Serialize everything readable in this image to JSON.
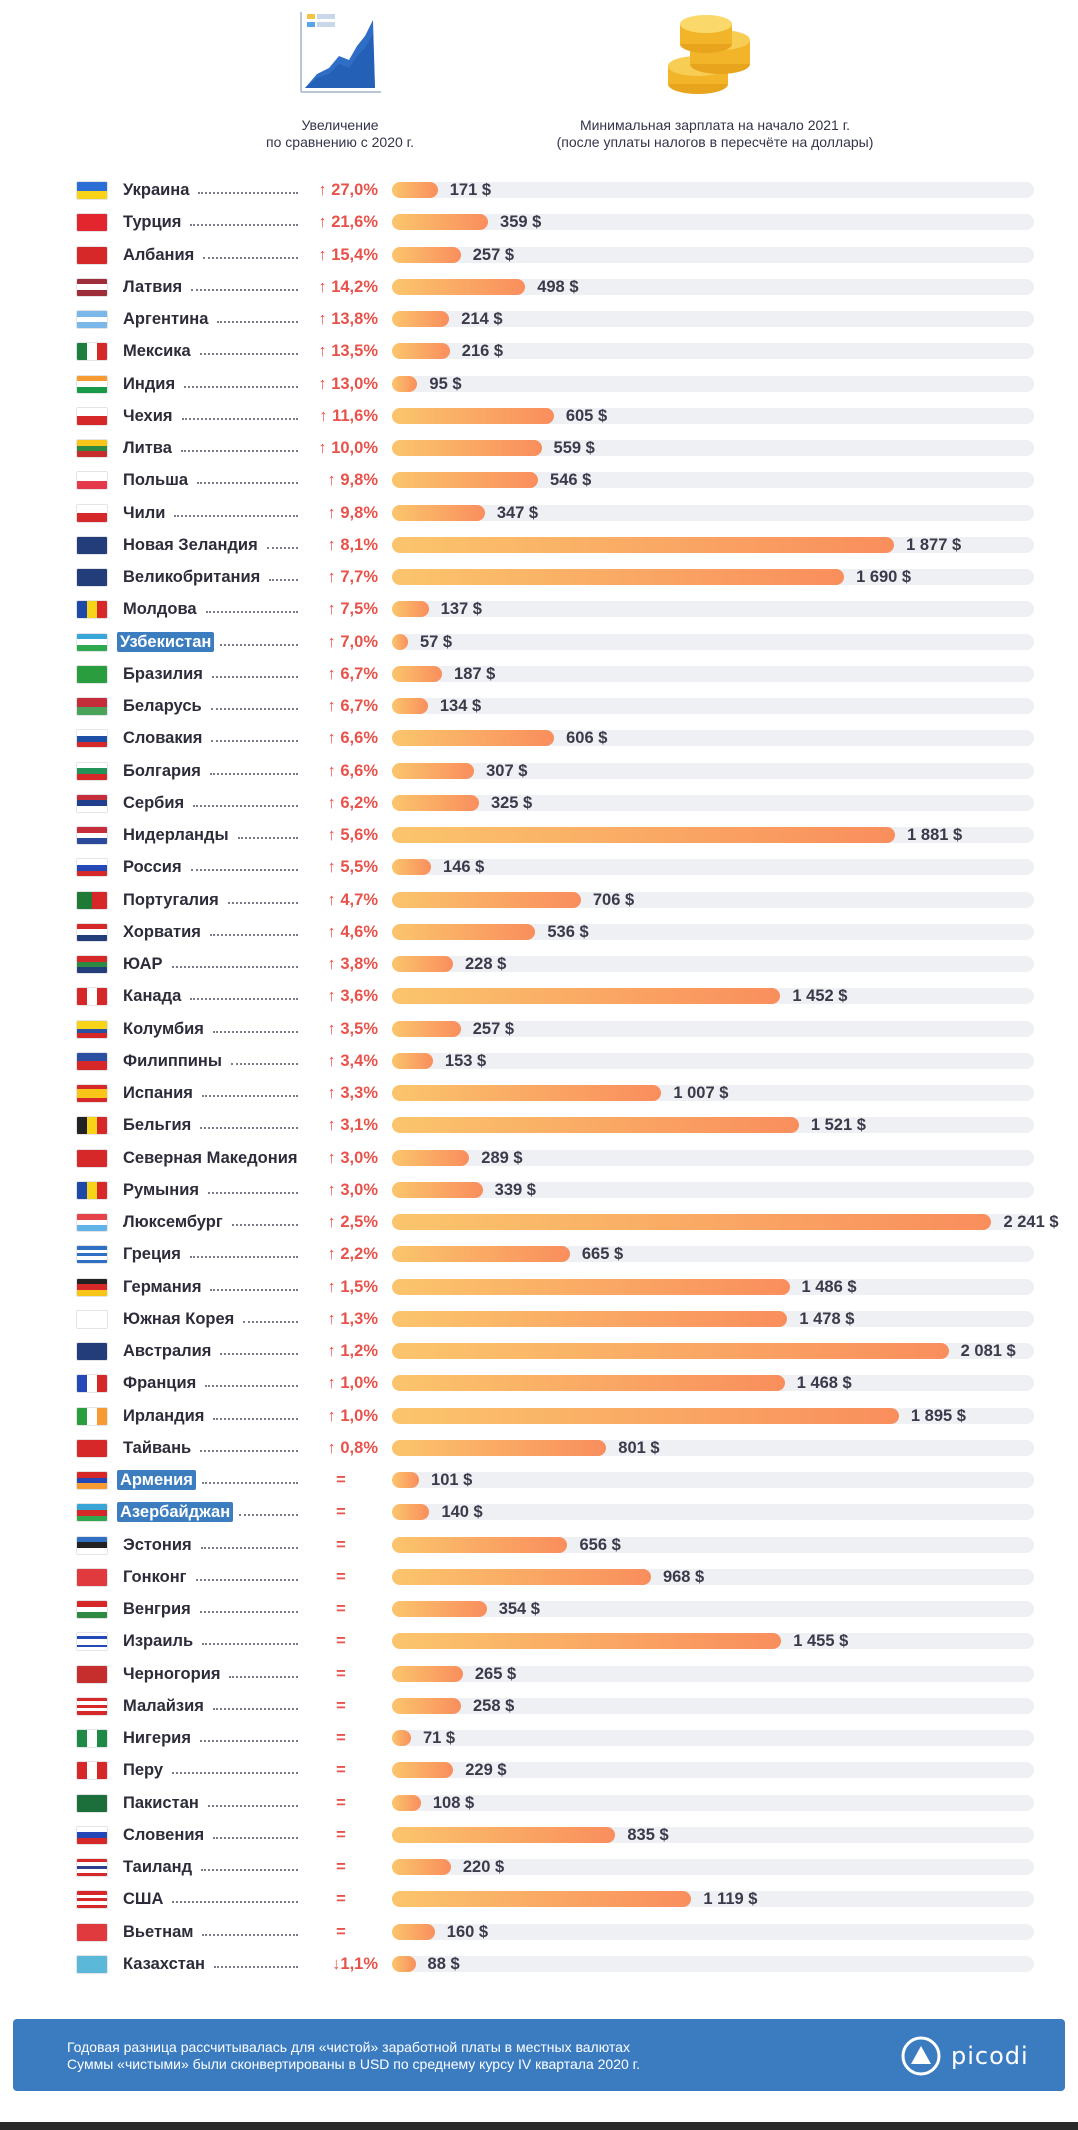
{
  "header": {
    "change_caption": "Увеличение\nпо сравнению с 2020 г.",
    "wage_caption": "Минимальная зарплата на начало 2021 г.\n(после уплаты налогов в пересчёте на доллары)"
  },
  "chart_data": {
    "type": "bar",
    "orientation": "horizontal",
    "xlim": [
      0,
      2400
    ],
    "rows": [
      {
        "country": "Украина",
        "change": "↑ 27,0%",
        "value": 171,
        "label": "171 $",
        "flag": [
          "#2b6fd6",
          "#f7d417"
        ],
        "dots": 8
      },
      {
        "country": "Турция",
        "change": "↑ 21,6%",
        "value": 359,
        "label": "359 $",
        "flag": [
          "#e3262d"
        ],
        "dots": 14
      },
      {
        "country": "Албания",
        "change": "↑ 15,4%",
        "value": 257,
        "label": "257 $",
        "flag": [
          "#d62828"
        ],
        "dots": 11
      },
      {
        "country": "Латвия",
        "change": "↑ 14,2%",
        "value": 498,
        "label": "498 $",
        "flag": [
          "#9e2f3a",
          "#ffffff",
          "#9e2f3a"
        ],
        "dots": 11
      },
      {
        "country": "Аргентина",
        "change": "↑ 13,8%",
        "value": 214,
        "label": "214 $",
        "flag": [
          "#7bb7e8",
          "#ffffff",
          "#7bb7e8"
        ],
        "dots": 9
      },
      {
        "country": "Мексика",
        "change": "↑ 13,5%",
        "value": 216,
        "label": "216 $",
        "flag": [
          "#1e7e3d",
          "#ffffff",
          "#d62828"
        ],
        "vertical": true,
        "dots": 10
      },
      {
        "country": "Индия",
        "change": "↑ 13,0%",
        "value": 95,
        "label": "95 $",
        "flag": [
          "#f79a32",
          "#ffffff",
          "#199a49"
        ],
        "dots": 12
      },
      {
        "country": "Чехия",
        "change": "↑ 11,6%",
        "value": 605,
        "label": "605 $",
        "flag": [
          "#ffffff",
          "#d62828"
        ],
        "dots": 13
      },
      {
        "country": "Литва",
        "change": "↑ 10,0%",
        "value": 559,
        "label": "559 $",
        "flag": [
          "#f7c619",
          "#2e8a43",
          "#c62d2d"
        ],
        "dots": 13
      },
      {
        "country": "Польша",
        "change": "↑ 9,8%",
        "value": 546,
        "label": "546 $",
        "flag": [
          "#ffffff",
          "#e5384a"
        ],
        "dots": 12
      },
      {
        "country": "Чили",
        "change": "↑ 9,8%",
        "value": 347,
        "label": "347 $",
        "flag": [
          "#ffffff",
          "#d62828"
        ],
        "dots": 14
      },
      {
        "country": "Новая Зеландия",
        "change": "↑ 8,1%",
        "value": 1877,
        "label": "1 877 $",
        "flag": [
          "#233d7b"
        ],
        "dots": 3
      },
      {
        "country": "Великобритания",
        "change": "↑ 7,7%",
        "value": 1690,
        "label": "1 690 $",
        "flag": [
          "#233d7b"
        ],
        "dots": 3
      },
      {
        "country": "Молдова",
        "change": "↑ 7,5%",
        "value": 137,
        "label": "137 $",
        "flag": [
          "#1f49a8",
          "#f7d417",
          "#d62828"
        ],
        "vertical": true,
        "dots": 11
      },
      {
        "country": "Узбекистан",
        "change": "↑ 7,0%",
        "value": 57,
        "label": "57 $",
        "flag": [
          "#38a6d8",
          "#ffffff",
          "#2fa84f"
        ],
        "highlight": true,
        "dots": 6
      },
      {
        "country": "Бразилия",
        "change": "↑ 6,7%",
        "value": 187,
        "label": "187 $",
        "flag": [
          "#2a9d3f"
        ],
        "dots": 10
      },
      {
        "country": "Беларусь",
        "change": "↑ 6,7%",
        "value": 134,
        "label": "134 $",
        "flag": [
          "#c62d3b",
          "#4aa35a"
        ],
        "dots": 11
      },
      {
        "country": "Словакия",
        "change": "↑ 6,6%",
        "value": 606,
        "label": "606 $",
        "flag": [
          "#ffffff",
          "#1d4fa6",
          "#d62828"
        ],
        "dots": 10
      },
      {
        "country": "Болгария",
        "change": "↑ 6,6%",
        "value": 307,
        "label": "307 $",
        "flag": [
          "#ffffff",
          "#22945a",
          "#d62828"
        ],
        "dots": 11
      },
      {
        "country": "Сербия",
        "change": "↑ 6,2%",
        "value": 325,
        "label": "325 $",
        "flag": [
          "#c62d3b",
          "#203f8c",
          "#ffffff"
        ],
        "dots": 13
      },
      {
        "country": "Нидерланды",
        "change": "↑ 5,6%",
        "value": 1881,
        "label": "1 881 $",
        "flag": [
          "#c62d3b",
          "#ffffff",
          "#2b4a9c"
        ],
        "dots": 7
      },
      {
        "country": "Россия",
        "change": "↑ 5,5%",
        "value": 146,
        "label": "146 $",
        "flag": [
          "#ffffff",
          "#2448b5",
          "#d62828"
        ],
        "dots": 13
      },
      {
        "country": "Португалия",
        "change": "↑ 4,7%",
        "value": 706,
        "label": "706 $",
        "flag": [
          "#1f7a36",
          "#d62828"
        ],
        "vertical": true,
        "dots": 6
      },
      {
        "country": "Хорватия",
        "change": "↑ 4,6%",
        "value": 536,
        "label": "536 $",
        "flag": [
          "#d62828",
          "#ffffff",
          "#233d7b"
        ],
        "dots": 9
      },
      {
        "country": "ЮАР",
        "change": "↑ 3,8%",
        "value": 228,
        "label": "228 $",
        "flag": [
          "#d62828",
          "#2e8a43",
          "#233d7b"
        ],
        "dots": 14
      },
      {
        "country": "Канада",
        "change": "↑ 3,6%",
        "value": 1452,
        "label": "1 452 $",
        "flag": [
          "#d62828",
          "#ffffff",
          "#d62828"
        ],
        "vertical": true,
        "dots": 11
      },
      {
        "country": "Колумбия",
        "change": "↑ 3,5%",
        "value": 257,
        "label": "257 $",
        "flag": [
          "#f7d417",
          "#f7d417",
          "#2b4fa0",
          "#d62828"
        ],
        "dots": 9
      },
      {
        "country": "Филиппины",
        "change": "↑ 3,4%",
        "value": 153,
        "label": "153 $",
        "flag": [
          "#2b4fa0",
          "#d62828"
        ],
        "dots": 7
      },
      {
        "country": "Испания",
        "change": "↑ 3,3%",
        "value": 1007,
        "label": "1 007 $",
        "flag": [
          "#d62828",
          "#f7c619",
          "#f7c619",
          "#d62828"
        ],
        "dots": 9
      },
      {
        "country": "Бельгия",
        "change": "↑ 3,1%",
        "value": 1521,
        "label": "1 521 $",
        "flag": [
          "#222222",
          "#f7d417",
          "#d62828"
        ],
        "vertical": true,
        "dots": 10
      },
      {
        "country": "Северная Македония",
        "change": "↑ 3,0%",
        "value": 289,
        "label": "289 $",
        "flag": [
          "#d62828"
        ],
        "dots": 0
      },
      {
        "country": "Румыния",
        "change": "↑ 3,0%",
        "value": 339,
        "label": "339 $",
        "flag": [
          "#1f49a8",
          "#f7d417",
          "#d62828"
        ],
        "vertical": true,
        "dots": 12
      },
      {
        "country": "Люксембург",
        "change": "↑ 2,5%",
        "value": 2241,
        "label": "2 241 $",
        "flag": [
          "#e6424a",
          "#ffffff",
          "#62b4e8"
        ],
        "dots": 6
      },
      {
        "country": "Греция",
        "change": "↑ 2,2%",
        "value": 665,
        "label": "665 $",
        "flag": [
          "#2f6fc4",
          "#ffffff",
          "#2f6fc4",
          "#ffffff",
          "#2f6fc4"
        ],
        "dots": 12
      },
      {
        "country": "Германия",
        "change": "↑ 1,5%",
        "value": 1486,
        "label": "1 486 $",
        "flag": [
          "#222222",
          "#d62828",
          "#f7c619"
        ],
        "dots": 11
      },
      {
        "country": "Южная Корея",
        "change": "↑ 1,3%",
        "value": 1478,
        "label": "1 478 $",
        "flag": [
          "#ffffff"
        ],
        "dots": 6
      },
      {
        "country": "Австралия",
        "change": "↑ 1,2%",
        "value": 2081,
        "label": "2 081 $",
        "flag": [
          "#233d7b"
        ],
        "dots": 9
      },
      {
        "country": "Франция",
        "change": "↑ 1,0%",
        "value": 1468,
        "label": "1 468 $",
        "flag": [
          "#2448b5",
          "#ffffff",
          "#d62828"
        ],
        "vertical": true,
        "dots": 11
      },
      {
        "country": "Ирландия",
        "change": "↑ 1,0%",
        "value": 1895,
        "label": "1 895 $",
        "flag": [
          "#2a9d3f",
          "#ffffff",
          "#f79a32"
        ],
        "vertical": true,
        "dots": 10
      },
      {
        "country": "Тайвань",
        "change": "↑ 0,8%",
        "value": 801,
        "label": "801 $",
        "flag": [
          "#d62828"
        ],
        "dots": 12
      },
      {
        "country": "Армения",
        "change": "=",
        "value": 101,
        "label": "101 $",
        "flag": [
          "#d62828",
          "#2448b5",
          "#f79a32"
        ],
        "highlight": true,
        "dots": 10
      },
      {
        "country": "Азербайджан",
        "change": "=",
        "value": 140,
        "label": "140 $",
        "flag": [
          "#3aa6d8",
          "#d62828",
          "#2fa84f"
        ],
        "highlight": true,
        "dots": 4
      },
      {
        "country": "Эстония",
        "change": "=",
        "value": 656,
        "label": "656 $",
        "flag": [
          "#2f6fc4",
          "#222222",
          "#ffffff"
        ],
        "dots": 12
      },
      {
        "country": "Гонконг",
        "change": "=",
        "value": 968,
        "label": "968 $",
        "flag": [
          "#e03a3e"
        ],
        "dots": 11
      },
      {
        "country": "Венгрия",
        "change": "=",
        "value": 354,
        "label": "354 $",
        "flag": [
          "#d62828",
          "#ffffff",
          "#2e8a43"
        ],
        "dots": 12
      },
      {
        "country": "Израиль",
        "change": "=",
        "value": 1455,
        "label": "1 455 $",
        "flag": [
          "#ffffff",
          "#2448b5",
          "#ffffff",
          "#ffffff",
          "#2448b5",
          "#ffffff"
        ],
        "dots": 12
      },
      {
        "country": "Черногория",
        "change": "=",
        "value": 265,
        "label": "265 $",
        "flag": [
          "#c62d2d"
        ],
        "dots": 8
      },
      {
        "country": "Малайзия",
        "change": "=",
        "value": 258,
        "label": "258 $",
        "flag": [
          "#d62828",
          "#ffffff",
          "#d62828",
          "#ffffff",
          "#d62828"
        ],
        "dots": 10
      },
      {
        "country": "Нигерия",
        "change": "=",
        "value": 71,
        "label": "71 $",
        "flag": [
          "#1f8a45",
          "#ffffff",
          "#1f8a45"
        ],
        "vertical": true,
        "dots": 12
      },
      {
        "country": "Перу",
        "change": "=",
        "value": 229,
        "label": "229 $",
        "flag": [
          "#d62828",
          "#ffffff",
          "#d62828"
        ],
        "vertical": true,
        "dots": 15
      },
      {
        "country": "Пакистан",
        "change": "=",
        "value": 108,
        "label": "108 $",
        "flag": [
          "#1c6e3a"
        ],
        "dots": 9
      },
      {
        "country": "Словения",
        "change": "=",
        "value": 835,
        "label": "835 $",
        "flag": [
          "#ffffff",
          "#2448b5",
          "#d62828"
        ],
        "dots": 11
      },
      {
        "country": "Таиланд",
        "change": "=",
        "value": 220,
        "label": "220 $",
        "flag": [
          "#d62828",
          "#ffffff",
          "#2b3f8c",
          "#ffffff",
          "#d62828"
        ],
        "dots": 12
      },
      {
        "country": "США",
        "change": "=",
        "value": 1119,
        "label": "1 119 $",
        "flag": [
          "#d62828",
          "#ffffff",
          "#d62828",
          "#ffffff",
          "#d62828"
        ],
        "dots": 15
      },
      {
        "country": "Вьетнам",
        "change": "=",
        "value": 160,
        "label": "160 $",
        "flag": [
          "#e03a3e"
        ],
        "dots": 11
      },
      {
        "country": "Казахстан",
        "change": "↓1,1%",
        "value": 88,
        "label": "88 $",
        "flag": [
          "#5bb8d8"
        ],
        "dots": 10
      }
    ]
  },
  "colors": {
    "bar_start": "#fbc56c",
    "bar_end": "#f98e5d",
    "track": "#eef0f4",
    "change": "#e8524a",
    "highlight": "#3c7dbf",
    "footer": "#3b7cc0"
  },
  "footer": {
    "note": "Годовая разница рассчитывалась для «чистой» заработной платы в местных валютах\nСуммы «чистыми» были сконвертированы в USD по среднему курсу IV квартала 2020 г.",
    "logo_text": "picodi"
  }
}
